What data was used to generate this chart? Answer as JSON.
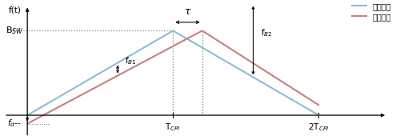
{
  "background_color": "#ffffff",
  "tx_color": "#8bbdd4",
  "rx_color": "#c48080",
  "BSW_label": "B$_{SW}$",
  "fd_label": "f$_d$",
  "fB1_label": "f$_{B1}$",
  "fB2_label": "f$_{B2}$",
  "tau_label": "τ",
  "ft_label": "f(t)",
  "TCPI_label": "T$_{CPI}$",
  "2TCPI_label": "2T$_{CPI}$",
  "legend_tx": "发射信号",
  "legend_rx": "接收信号",
  "BSW": 1.0,
  "fd": -0.1,
  "TCPI": 1.0,
  "tau": 0.2,
  "xlim": [
    -0.18,
    2.55
  ],
  "ylim": [
    -0.28,
    1.35
  ]
}
